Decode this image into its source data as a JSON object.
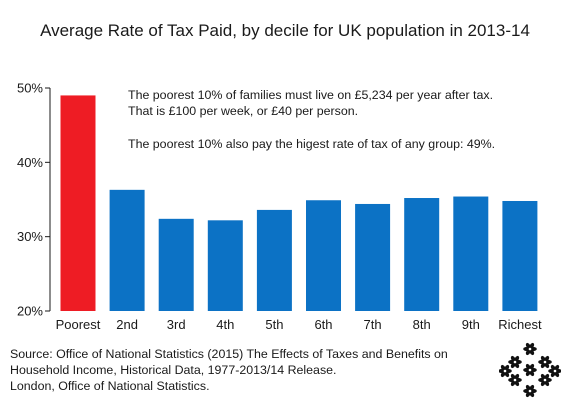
{
  "chart_data": {
    "type": "bar",
    "title": "Average Rate of Tax Paid, by decile for UK population in 2013-14",
    "categories": [
      "Poorest",
      "2nd",
      "3rd",
      "4th",
      "5th",
      "6th",
      "7th",
      "8th",
      "9th",
      "Richest"
    ],
    "values": [
      49,
      36.3,
      32.4,
      32.2,
      33.6,
      34.9,
      34.4,
      35.2,
      35.4,
      34.8
    ],
    "ylim": [
      20,
      50
    ],
    "yticks": [
      20,
      30,
      40,
      50
    ],
    "ytick_labels": [
      "20%",
      "30%",
      "40%",
      "50%"
    ],
    "highlight_index": 0,
    "colors": {
      "default": "#0c72c5",
      "highlight": "#ee1c24"
    },
    "grid": false,
    "annotations": [
      "The poorest 10% of families must live on £5,234 per year after tax.",
      "That is £100 per week, or £40 per person.",
      "The poorest 10% also pay the higest rate of tax of any group: 49%."
    ]
  },
  "source": [
    "Source: Office of National Statistics (2015) The Effects of Taxes and Benefits on",
    "Household Income, Historical Data, 1977-2013/14 Release.",
    "London, Office of National Statistics."
  ],
  "logo_icon": "flower-cluster-icon"
}
